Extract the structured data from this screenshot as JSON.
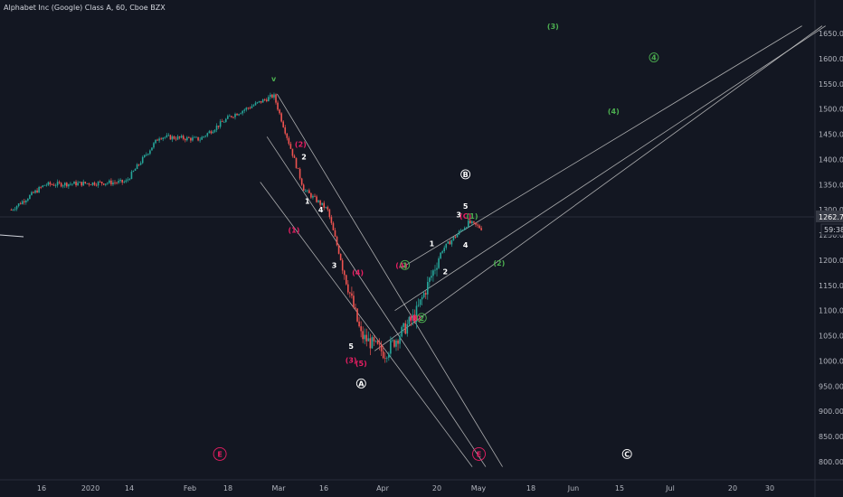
{
  "header": {
    "title": "Alphabet Inc (Google) Class A, 60, Cboe BZX"
  },
  "price_box": {
    "last_price": "1262.78",
    "countdown": "59:38"
  },
  "colors": {
    "background": "#131722",
    "up": "#26a69a",
    "down": "#ef5350",
    "white_label": "#ffffff",
    "green_label": "#4caf50",
    "pink_label": "#e91e63",
    "channel_line": "#c8c8c8"
  },
  "chart_data": {
    "type": "candlestick",
    "title": "Alphabet Inc (Google) Class A, 60, Cboe BZX",
    "y_axis": {
      "ticks": [
        800,
        850,
        900,
        950,
        1000,
        1050,
        1100,
        1150,
        1200,
        1250,
        1300,
        1350,
        1400,
        1450,
        1500,
        1550,
        1600,
        1650
      ],
      "tick_labels": [
        "800.00",
        "850.00",
        "900.00",
        "950.00",
        "1000.00",
        "1050.00",
        "1100.00",
        "1150.00",
        "1200.00",
        "1250.00",
        "1300.00",
        "1350.00",
        "1400.00",
        "1450.00",
        "1500.00",
        "1550.00",
        "1600.00",
        "1650.00"
      ],
      "range": [
        790,
        1665
      ]
    },
    "x_axis": {
      "tick_labels": [
        "16",
        "2020",
        "14",
        "Feb",
        "18",
        "Mar",
        "16",
        "Apr",
        "20",
        "May",
        "18",
        "Jun",
        "15",
        "Jul",
        "20",
        "30"
      ]
    },
    "price_path": [
      {
        "x": "2019-12-03",
        "y": 1300
      },
      {
        "x": "2019-12-13",
        "y": 1350
      },
      {
        "x": "2020-01-06",
        "y": 1355
      },
      {
        "x": "2020-01-16",
        "y": 1445
      },
      {
        "x": "2020-01-28",
        "y": 1440
      },
      {
        "x": "2020-02-06",
        "y": 1485
      },
      {
        "x": "2020-02-19",
        "y": 1527
      },
      {
        "x": "2020-02-28",
        "y": 1340
      },
      {
        "x": "2020-03-06",
        "y": 1300
      },
      {
        "x": "2020-03-16",
        "y": 1050
      },
      {
        "x": "2020-03-23",
        "y": 1015
      },
      {
        "x": "2020-04-01",
        "y": 1090
      },
      {
        "x": "2020-04-09",
        "y": 1220
      },
      {
        "x": "2020-04-17",
        "y": 1275
      },
      {
        "x": "2020-04-21",
        "y": 1262.78
      }
    ],
    "last_price": 1262.78,
    "wave_labels": [
      {
        "text": "v",
        "x": "2020-02-19",
        "y": 1555,
        "color": "green"
      },
      {
        "text": "(2)",
        "x": "2020-02-27",
        "y": 1425,
        "color": "pink"
      },
      {
        "text": "2",
        "x": "2020-02-28",
        "y": 1400,
        "color": "white"
      },
      {
        "text": "1",
        "x": "2020-02-29",
        "y": 1312,
        "color": "white"
      },
      {
        "text": "4",
        "x": "2020-03-04",
        "y": 1295,
        "color": "white"
      },
      {
        "text": "(1)",
        "x": "2020-02-25",
        "y": 1255,
        "color": "pink"
      },
      {
        "text": "3",
        "x": "2020-03-08",
        "y": 1185,
        "color": "white"
      },
      {
        "text": "(4)",
        "x": "2020-03-15",
        "y": 1170,
        "color": "pink"
      },
      {
        "text": "5",
        "x": "2020-03-13",
        "y": 1024,
        "color": "white"
      },
      {
        "text": "(3)",
        "x": "2020-03-13",
        "y": 996,
        "color": "pink"
      },
      {
        "text": "(5)",
        "x": "2020-03-16",
        "y": 990,
        "color": "pink"
      },
      {
        "text": "A",
        "x": "2020-03-16",
        "y": 950,
        "color": "white",
        "circled": true
      },
      {
        "text": "(A)",
        "x": "2020-03-28",
        "y": 1185,
        "color": "pink"
      },
      {
        "text": "1",
        "x": "2020-03-29",
        "y": 1185,
        "color": "green",
        "circled": true
      },
      {
        "text": "(B)",
        "x": "2020-04-01",
        "y": 1080,
        "color": "pink"
      },
      {
        "text": "2",
        "x": "2020-04-03",
        "y": 1080,
        "color": "green",
        "circled": true
      },
      {
        "text": "1",
        "x": "2020-04-06",
        "y": 1228,
        "color": "white"
      },
      {
        "text": "2",
        "x": "2020-04-10",
        "y": 1172,
        "color": "white"
      },
      {
        "text": "3",
        "x": "2020-04-14",
        "y": 1285,
        "color": "white"
      },
      {
        "text": "4",
        "x": "2020-04-16",
        "y": 1225,
        "color": "white"
      },
      {
        "text": "5",
        "x": "2020-04-16",
        "y": 1302,
        "color": "white"
      },
      {
        "text": "(C)",
        "x": "2020-04-16",
        "y": 1282,
        "color": "pink"
      },
      {
        "text": "(1)",
        "x": "2020-04-18",
        "y": 1282,
        "color": "green"
      },
      {
        "text": "B",
        "x": "2020-04-16",
        "y": 1365,
        "color": "white",
        "circled": true
      },
      {
        "text": "(2)",
        "x": "2020-04-26",
        "y": 1189,
        "color": "green"
      },
      {
        "text": "(3)",
        "x": "2020-05-12",
        "y": 1659,
        "color": "green"
      },
      {
        "text": "(4)",
        "x": "2020-05-30",
        "y": 1490,
        "color": "green"
      },
      {
        "text": "4",
        "x": "2020-06-11",
        "y": 1597,
        "color": "green",
        "circled": true
      },
      {
        "text": "E",
        "x": "2020-02-03",
        "y": 810,
        "color": "pink",
        "circled": true
      },
      {
        "text": "E",
        "x": "2020-04-20",
        "y": 810,
        "color": "pink",
        "circled": true
      },
      {
        "text": "C",
        "x": "2020-06-03",
        "y": 810,
        "color": "white",
        "circled": true
      }
    ],
    "channel_lines": [
      {
        "x1": "2020-02-20",
        "y1": 1530,
        "x2": "2020-04-27",
        "y2": 790
      },
      {
        "x1": "2020-02-17",
        "y1": 1445,
        "x2": "2020-04-22",
        "y2": 790
      },
      {
        "x1": "2020-02-15",
        "y1": 1355,
        "x2": "2020-04-18",
        "y2": 790
      },
      {
        "x1": "2020-03-20",
        "y1": 1020,
        "x2": "2020-07-31",
        "y2": 1665
      },
      {
        "x1": "2020-03-26",
        "y1": 1100,
        "x2": "2020-08-01",
        "y2": 1665
      },
      {
        "x1": "2020-03-28",
        "y1": 1185,
        "x2": "2020-07-25",
        "y2": 1665
      }
    ]
  }
}
